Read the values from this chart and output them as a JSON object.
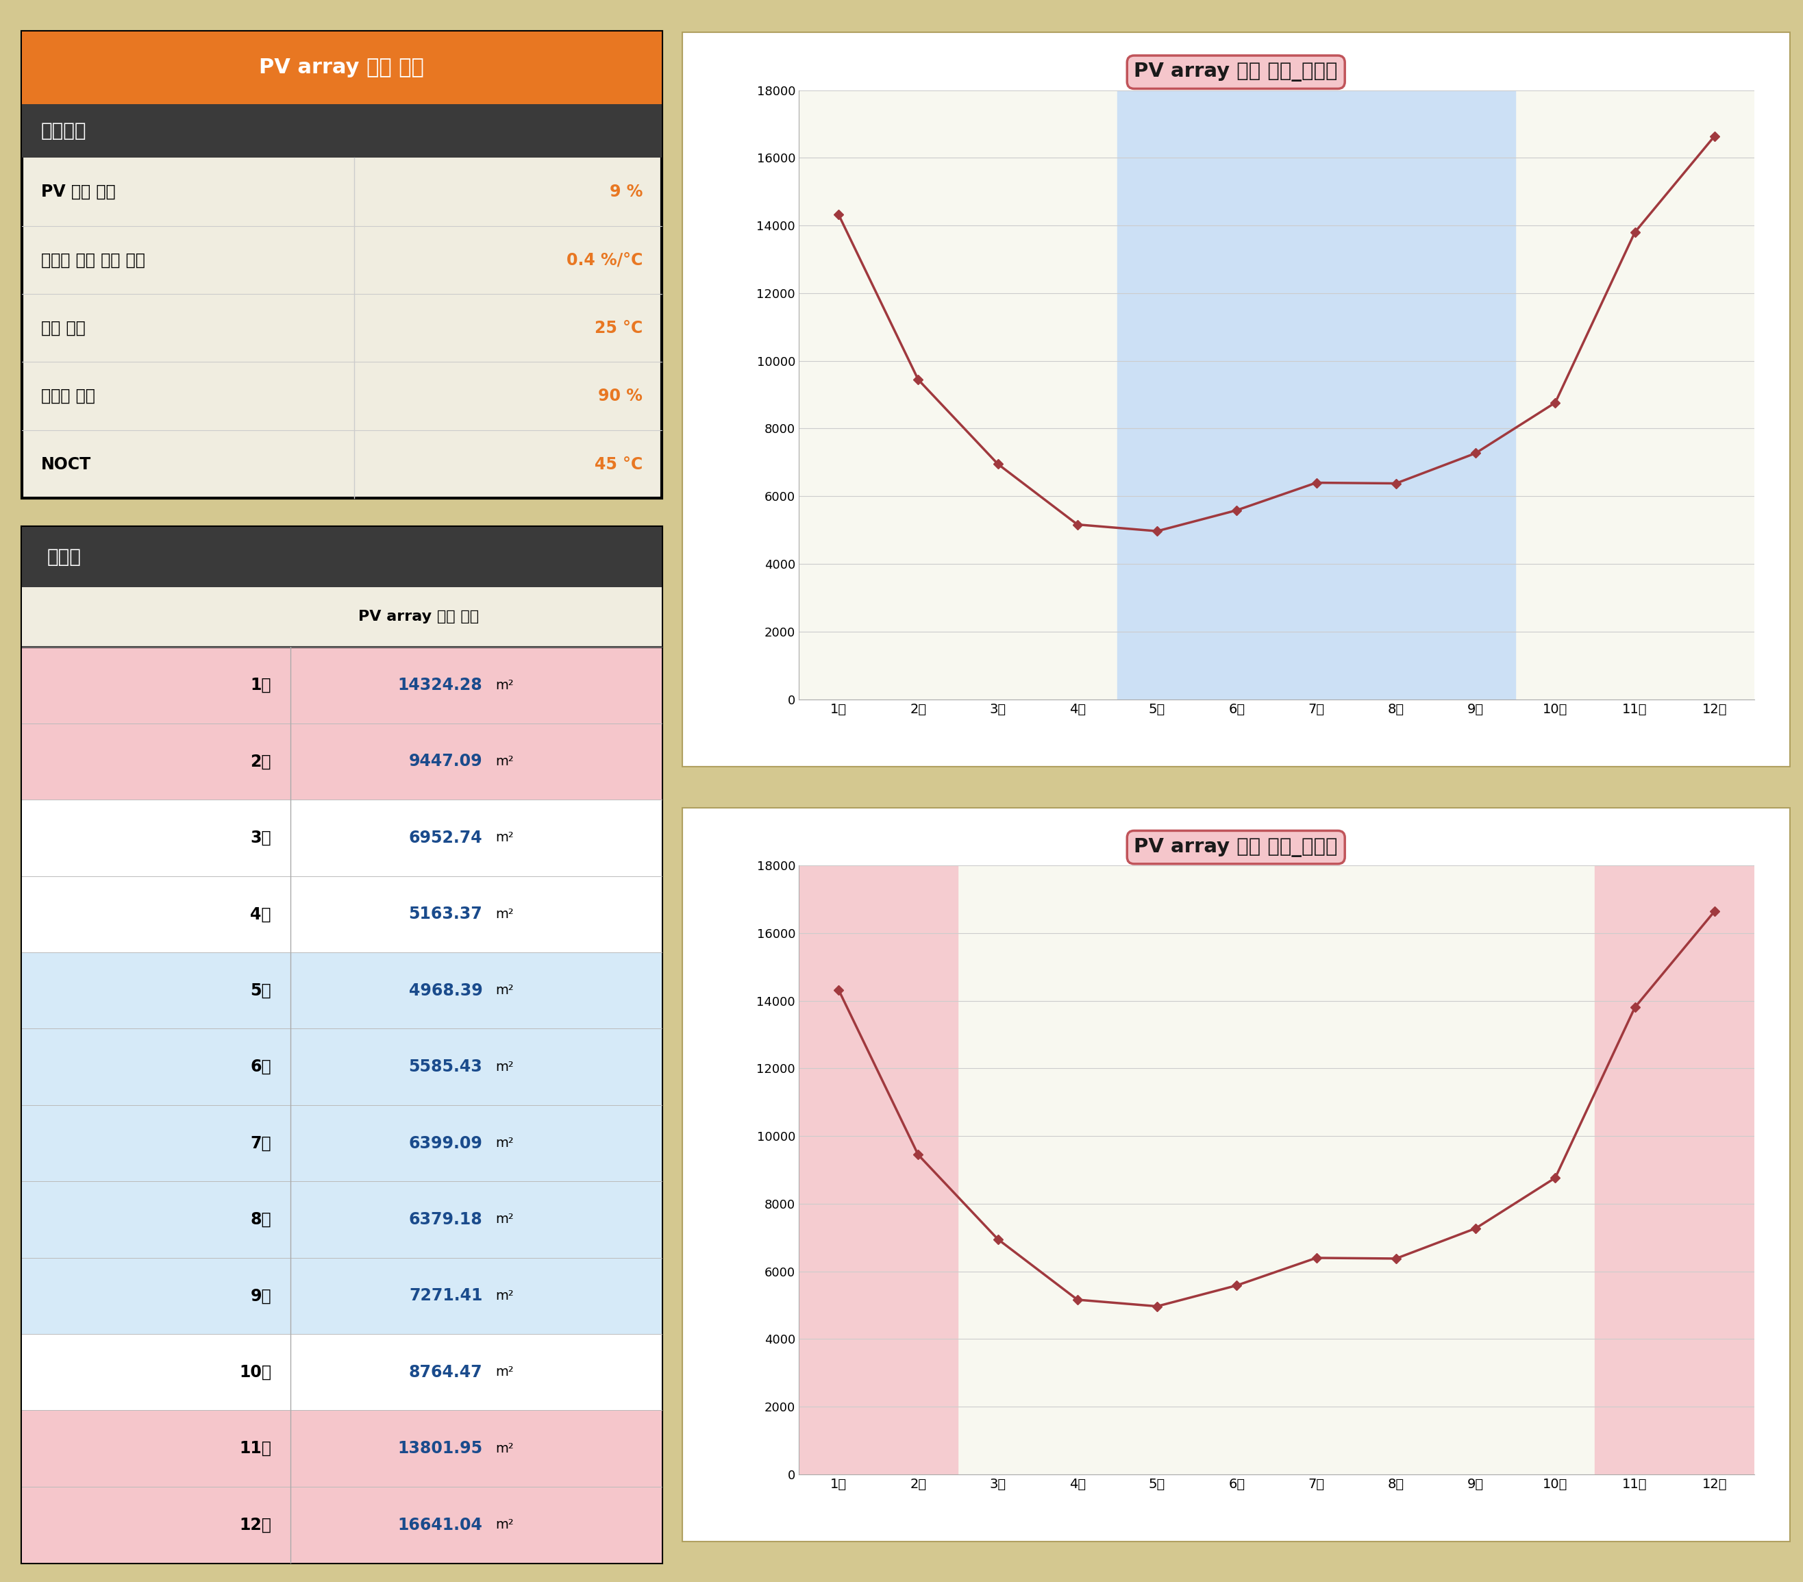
{
  "title_top": "PV array 면적 예측",
  "input_section_header": "입력변수",
  "input_params": [
    [
      "PV 정격 효율",
      "9 %"
    ],
    [
      "모듈에 따른 온도 상수",
      "0.4 %/°C"
    ],
    [
      "정격 온도",
      "25 °C"
    ],
    [
      "인버터 효율",
      "90 %"
    ],
    [
      "NOCT",
      "45 °C"
    ]
  ],
  "result_section_header": "결과값",
  "result_col_header": "PV array 설치 면적",
  "months": [
    "1월",
    "2월",
    "3월",
    "4월",
    "5월",
    "6월",
    "7월",
    "8월",
    "9월",
    "10월",
    "11월",
    "12월"
  ],
  "values": [
    14324.28,
    9447.09,
    6952.74,
    5163.37,
    4968.39,
    5585.43,
    6399.09,
    6379.18,
    7271.41,
    8764.47,
    13801.95,
    16641.04
  ],
  "unit": "m²",
  "row_colors": [
    "#f5c6cb",
    "#f5c6cb",
    "#ffffff",
    "#ffffff",
    "#d6eaf8",
    "#d6eaf8",
    "#d6eaf8",
    "#d6eaf8",
    "#d6eaf8",
    "#ffffff",
    "#f5c6cb",
    "#f5c6cb"
  ],
  "chart1_title": "PV array 설치 면적_냉방기",
  "chart2_title": "PV array 설치 면적_난방기",
  "orange_color": "#E87722",
  "dark_header_color": "#3a3a3a",
  "beige_color": "#f0ede0",
  "line_color": "#a0393e",
  "chart_bg": "#f8f8f0",
  "cooling_shade_color": "#cce0f5",
  "heating_shade_color": "#f5ccd0",
  "ymax": 18000,
  "yticks": [
    0,
    2000,
    4000,
    6000,
    8000,
    10000,
    12000,
    14000,
    16000,
    18000
  ],
  "chart_border_color": "#b0a060",
  "outer_bg": "#d4c890"
}
